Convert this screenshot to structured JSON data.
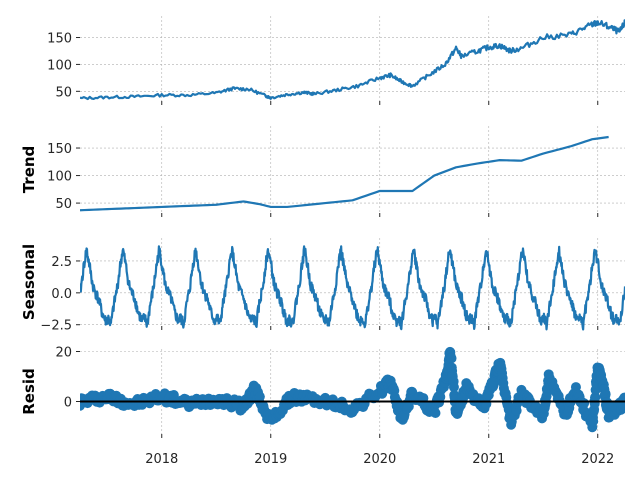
{
  "chart_data": [
    {
      "type": "line",
      "panel": "observed",
      "ylabel": "",
      "ylim": [
        32,
        190
      ],
      "yticks": [
        50,
        100,
        150
      ],
      "color": "#1f77b4",
      "series": [
        {
          "x": [
            2017.25,
            2017.5,
            2017.75,
            2018.0,
            2018.25,
            2018.5,
            2018.65,
            2018.8,
            2018.95,
            2019.0,
            2019.15,
            2019.3,
            2019.4,
            2019.6,
            2019.8,
            2020.0,
            2020.1,
            2020.2,
            2020.3,
            2020.45,
            2020.6,
            2020.7,
            2020.75,
            2020.9,
            2021.0,
            2021.1,
            2021.2,
            2021.3,
            2021.5,
            2021.75,
            2021.9,
            2022.0,
            2022.1,
            2022.2,
            2022.25
          ],
          "y": [
            37,
            39,
            40,
            43,
            43,
            47,
            55,
            54,
            42,
            38,
            44,
            48,
            45,
            52,
            60,
            75,
            80,
            68,
            60,
            80,
            100,
            130,
            115,
            125,
            132,
            135,
            125,
            130,
            150,
            155,
            170,
            178,
            170,
            160,
            178
          ]
        }
      ]
    },
    {
      "type": "line",
      "panel": "trend",
      "ylabel": "Trend",
      "ylim": [
        32,
        190
      ],
      "yticks": [
        50,
        100,
        150
      ],
      "color": "#1f77b4",
      "series": [
        {
          "x": [
            2017.25,
            2017.5,
            2017.75,
            2018.0,
            2018.25,
            2018.5,
            2018.75,
            2018.9,
            2019.0,
            2019.15,
            2019.5,
            2019.75,
            2020.0,
            2020.2,
            2020.3,
            2020.5,
            2020.7,
            2020.9,
            2021.1,
            2021.3,
            2021.5,
            2021.75,
            2021.95,
            2022.1
          ],
          "y": [
            37,
            39,
            41,
            43,
            45,
            47,
            53,
            48,
            43,
            43,
            50,
            55,
            72,
            72,
            72,
            100,
            115,
            122,
            128,
            127,
            140,
            153,
            166,
            170
          ]
        }
      ]
    },
    {
      "type": "line",
      "panel": "seasonal",
      "ylabel": "Seasonal",
      "ylim": [
        -2.6,
        4.3
      ],
      "yticks": [
        -2.5,
        0.0,
        2.5
      ],
      "ytick_labels": [
        "−2.5",
        "0.0",
        "2.5"
      ],
      "color": "#1f77b4",
      "period_years": 0.3333,
      "series": [
        {
          "cycle_shape_x": [
            0.0,
            0.08,
            0.18,
            0.25,
            0.33,
            0.42,
            0.5,
            0.58,
            0.66,
            0.75,
            0.85,
            0.93,
            1.0
          ],
          "cycle_shape_y": [
            -2.5,
            -1.0,
            0.5,
            2.0,
            3.4,
            2.0,
            0.6,
            0.0,
            -0.5,
            -1.5,
            -2.2,
            -2.0,
            -2.5
          ]
        }
      ]
    },
    {
      "type": "scatter",
      "panel": "resid",
      "ylabel": "Resid",
      "ylim": [
        -13,
        21
      ],
      "yticks": [
        0,
        20
      ],
      "color": "#1f77b4",
      "baseline": 0,
      "series": [
        {
          "x": [
            2017.25,
            2017.5,
            2017.75,
            2018.0,
            2018.25,
            2018.5,
            2018.75,
            2018.85,
            2019.0,
            2019.2,
            2019.5,
            2019.75,
            2020.0,
            2020.1,
            2020.2,
            2020.3,
            2020.5,
            2020.6,
            2020.65,
            2020.7,
            2020.8,
            2020.95,
            2021.05,
            2021.1,
            2021.2,
            2021.3,
            2021.5,
            2021.55,
            2021.7,
            2021.8,
            2021.95,
            2022.0,
            2022.05,
            2022.1,
            2022.2,
            2022.25
          ],
          "y": [
            0,
            2,
            -1,
            2,
            -1,
            1,
            -2,
            5,
            -8,
            2,
            0,
            -3,
            4,
            8,
            -7,
            3,
            -4,
            8,
            20,
            -5,
            6,
            -3,
            9,
            15,
            -8,
            3,
            -6,
            9,
            -5,
            5,
            -10,
            14,
            6,
            -5,
            -2,
            0
          ]
        }
      ]
    }
  ],
  "shared_x": {
    "xlim": [
      2017.25,
      2022.25
    ],
    "ticks": [
      2018,
      2019,
      2020,
      2021,
      2022
    ],
    "tick_labels": [
      "2018",
      "2019",
      "2020",
      "2021",
      "2022"
    ]
  }
}
